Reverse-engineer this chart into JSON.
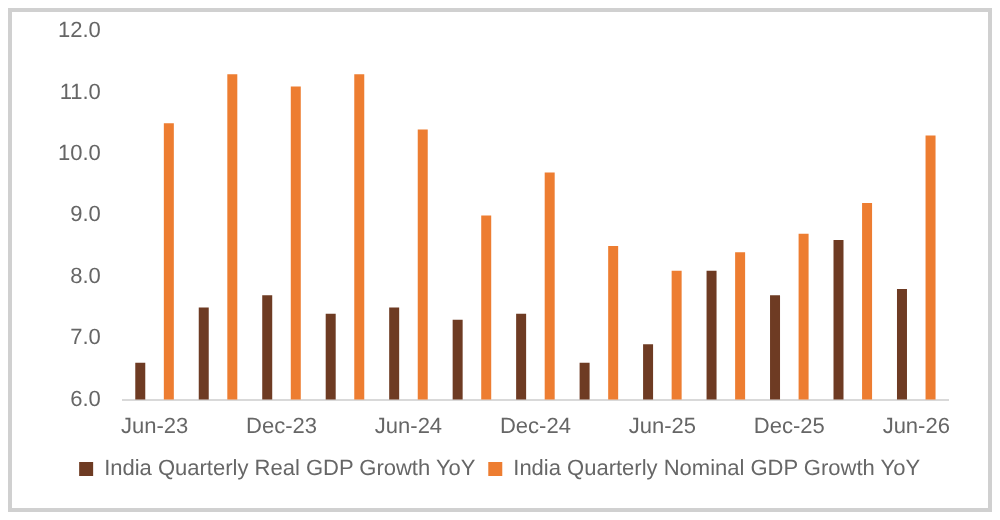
{
  "chart_data": {
    "type": "bar",
    "categories": [
      "Jun-23",
      null,
      "Dec-23",
      null,
      "Jun-24",
      null,
      "Dec-24",
      null,
      "Jun-25",
      null,
      "Dec-25",
      null,
      "Jun-26"
    ],
    "series": [
      {
        "name": "India Quarterly Real GDP Growth YoY",
        "color": "#6e3b23",
        "values": [
          6.6,
          7.5,
          7.7,
          7.4,
          7.5,
          7.3,
          7.4,
          6.6,
          6.9,
          8.1,
          7.7,
          8.6,
          7.8
        ]
      },
      {
        "name": "India Quarterly Nominal GDP Growth YoY",
        "color": "#ed7d31",
        "values": [
          10.5,
          11.3,
          11.1,
          11.3,
          10.4,
          9.0,
          9.7,
          8.5,
          8.1,
          8.4,
          8.7,
          9.2,
          10.3
        ]
      }
    ],
    "ylim": [
      6,
      12
    ],
    "yticks": [
      {
        "value": 6,
        "label": "6.0"
      },
      {
        "value": 7,
        "label": "7.0"
      },
      {
        "value": 8,
        "label": "8.0"
      },
      {
        "value": 9,
        "label": "9.0"
      },
      {
        "value": 10,
        "label": "10.0"
      },
      {
        "value": 11,
        "label": "11.0"
      },
      {
        "value": 12,
        "label": "12.0"
      }
    ],
    "grid": false,
    "legend": "bottom"
  }
}
